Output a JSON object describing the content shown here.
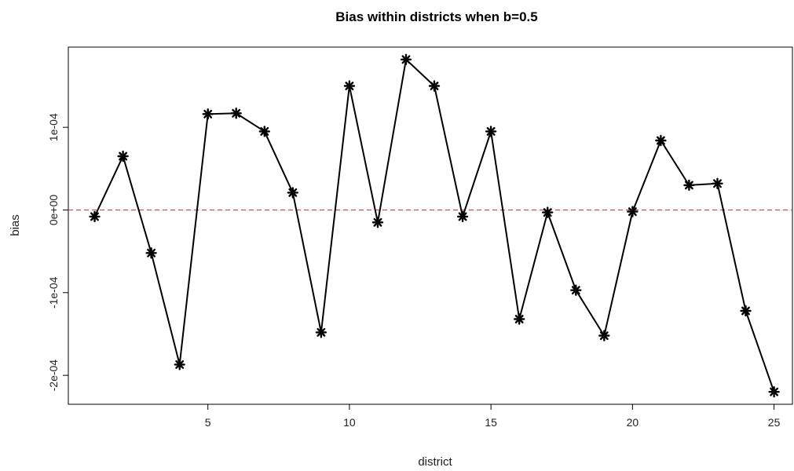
{
  "chart_data": {
    "type": "line",
    "title": "Bias within districts when b=0.5",
    "xlabel": "district",
    "ylabel": "bias",
    "xlim": [
      0.07,
      25.65
    ],
    "ylim": [
      -0.000235,
      0.000197
    ],
    "x_ticks": [
      {
        "value": 5,
        "label": "5"
      },
      {
        "value": 10,
        "label": "10"
      },
      {
        "value": 15,
        "label": "15"
      },
      {
        "value": 20,
        "label": "20"
      },
      {
        "value": 25,
        "label": "25"
      }
    ],
    "y_ticks": [
      {
        "value": -0.0002,
        "label": "-2e-04"
      },
      {
        "value": -0.0001,
        "label": "-1e-04"
      },
      {
        "value": 0,
        "label": "0e+00"
      },
      {
        "value": 0.0001,
        "label": "1e-04"
      }
    ],
    "reference_line": {
      "y": 0,
      "style": "dashed",
      "color": "#c0504d"
    },
    "grid": false,
    "marker": "asterisk",
    "line_color": "#000000",
    "x": [
      1,
      2,
      3,
      4,
      5,
      6,
      7,
      8,
      9,
      10,
      11,
      12,
      13,
      14,
      15,
      16,
      17,
      18,
      19,
      20,
      21,
      22,
      23,
      24,
      25
    ],
    "series": [
      {
        "values": [
          -8e-06,
          6.5e-05,
          -5.2e-05,
          -0.000187,
          0.000116,
          0.000117,
          9.5e-05,
          2.1e-05,
          -0.000148,
          0.00015,
          -1.5e-05,
          0.000182,
          0.00015,
          -8e-06,
          9.5e-05,
          -0.000132,
          -3e-06,
          -9.7e-05,
          -0.000152,
          -2e-06,
          8.4e-05,
          3e-05,
          3.2e-05,
          -0.000122,
          -0.00022
        ]
      }
    ]
  }
}
